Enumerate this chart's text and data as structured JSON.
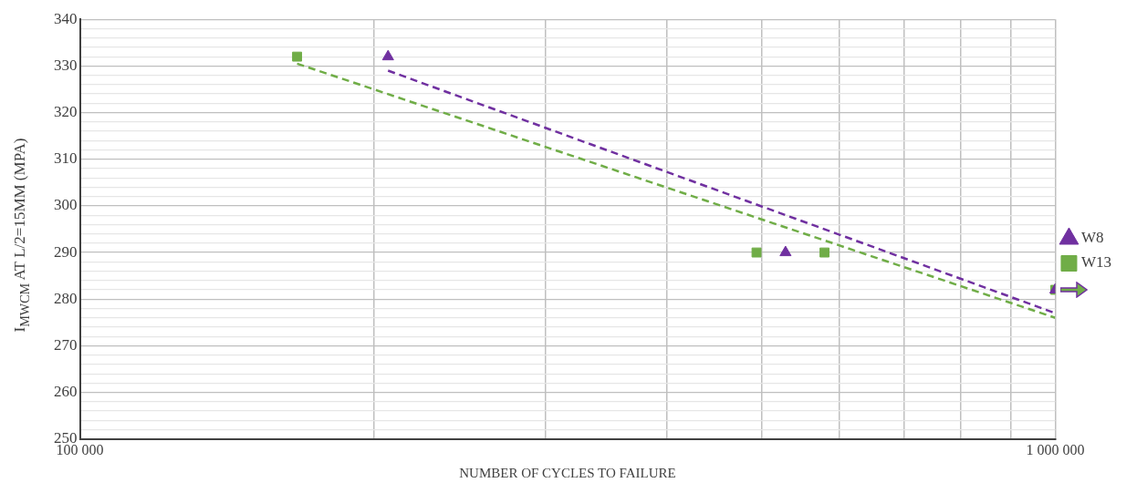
{
  "chart_data": {
    "type": "scatter",
    "xlabel": "NUMBER OF CYCLES TO FAILURE",
    "ylabel": "I$_{MWCM}$ AT L/2=15MM (MPA)",
    "log": "x",
    "grid": true,
    "legend": "right",
    "xlim": [
      100000,
      1000000
    ],
    "xticks": [
      {
        "value": 100000,
        "label": "100 000"
      },
      {
        "value": 200000,
        "label": null
      },
      {
        "value": 300000,
        "label": null
      },
      {
        "value": 400000,
        "label": null
      },
      {
        "value": 500000,
        "label": null
      },
      {
        "value": 600000,
        "label": null
      },
      {
        "value": 700000,
        "label": null
      },
      {
        "value": 800000,
        "label": null
      },
      {
        "value": 900000,
        "label": null
      },
      {
        "value": 1000000,
        "label": "1 000 000"
      }
    ],
    "ylim": [
      250,
      340
    ],
    "yticks": [
      250,
      {
        "value": 252,
        "label": null
      },
      {
        "value": 254,
        "label": null
      },
      {
        "value": 256,
        "label": null
      },
      {
        "value": 258,
        "label": null
      },
      260,
      {
        "value": 262,
        "label": null
      },
      {
        "value": 264,
        "label": null
      },
      {
        "value": 266,
        "label": null
      },
      {
        "value": 268,
        "label": null
      },
      270,
      {
        "value": 272,
        "label": null
      },
      {
        "value": 274,
        "label": null
      },
      {
        "value": 276,
        "label": null
      },
      {
        "value": 278,
        "label": null
      },
      280,
      {
        "value": 282,
        "label": null
      },
      {
        "value": 284,
        "label": null
      },
      {
        "value": 286,
        "label": null
      },
      {
        "value": 288,
        "label": null
      },
      290,
      {
        "value": 292,
        "label": null
      },
      {
        "value": 294,
        "label": null
      },
      {
        "value": 296,
        "label": null
      },
      {
        "value": 298,
        "label": null
      },
      300,
      {
        "value": 302,
        "label": null
      },
      {
        "value": 304,
        "label": null
      },
      {
        "value": 306,
        "label": null
      },
      {
        "value": 308,
        "label": null
      },
      310,
      {
        "value": 312,
        "label": null
      },
      {
        "value": 314,
        "label": null
      },
      {
        "value": 316,
        "label": null
      },
      {
        "value": 318,
        "label": null
      },
      320,
      {
        "value": 322,
        "label": null
      },
      {
        "value": 324,
        "label": null
      },
      {
        "value": 326,
        "label": null
      },
      {
        "value": 328,
        "label": null
      },
      330,
      {
        "value": 332,
        "label": null
      },
      {
        "value": 334,
        "label": null
      },
      {
        "value": 336,
        "label": null
      },
      {
        "value": 338,
        "label": null
      },
      340
    ],
    "series": [
      {
        "type": "line",
        "color": "#7030a0",
        "line_style": "dashed",
        "marker": "none",
        "x": [
          207000,
          1000000
        ],
        "values": [
          329,
          277
        ]
      },
      {
        "type": "line",
        "color": "#70ad47",
        "line_style": "dashed",
        "marker": "none",
        "x": [
          167000,
          1000000
        ],
        "values": [
          330.5,
          276
        ]
      },
      {
        "name": "W8",
        "color": "#7030a0",
        "marker": "triangle",
        "x": [
          207000,
          529000,
          1000000
        ],
        "values": [
          332,
          290,
          282
        ]
      },
      {
        "name": "W13",
        "color": "#70ad47",
        "marker": "square",
        "x": [
          167000,
          494000,
          580000,
          1000000
        ],
        "values": [
          332,
          290,
          290,
          282
        ]
      }
    ]
  }
}
